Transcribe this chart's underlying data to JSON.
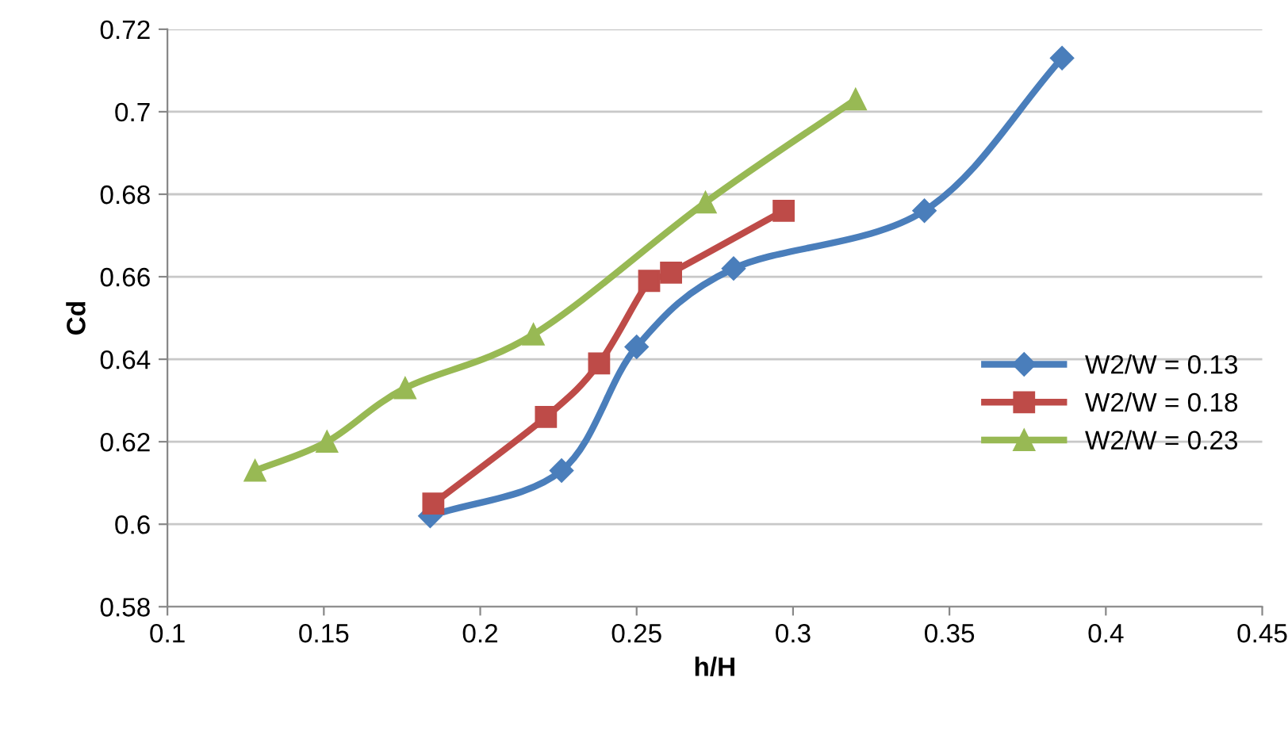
{
  "chart_data": {
    "type": "line",
    "xlabel": "h/H",
    "ylabel": "Cd",
    "xlim": [
      0.1,
      0.45
    ],
    "xticks": [
      0.1,
      0.15,
      0.2,
      0.25,
      0.3,
      0.35,
      0.4,
      0.45
    ],
    "ylim": [
      0.58,
      0.72
    ],
    "yticks": [
      0.58,
      0.6,
      0.62,
      0.64,
      0.66,
      0.68,
      {
        "value": 0.7,
        "label": "0.7"
      },
      0.72
    ],
    "grid": "y",
    "legend": "right",
    "series": [
      {
        "name": "W2/W = 0.13",
        "color": "#4a7ebb",
        "marker": "diamond",
        "x": [
          0.184,
          0.226,
          0.25,
          0.281,
          0.342,
          0.386
        ],
        "values": [
          0.602,
          0.613,
          0.643,
          0.662,
          0.676,
          0.713
        ]
      },
      {
        "name": "W2/W = 0.18",
        "color": "#be4b48",
        "marker": "square",
        "x": [
          0.185,
          0.221,
          0.238,
          0.254,
          0.261,
          0.297
        ],
        "values": [
          0.605,
          0.626,
          0.639,
          0.659,
          0.661,
          0.676
        ]
      },
      {
        "name": "W2/W = 0.23",
        "color": "#98b954",
        "marker": "triangle",
        "x": [
          0.128,
          0.151,
          0.176,
          0.217,
          0.272,
          0.32
        ],
        "values": [
          0.613,
          0.62,
          0.633,
          0.646,
          0.678,
          0.703
        ]
      }
    ]
  }
}
